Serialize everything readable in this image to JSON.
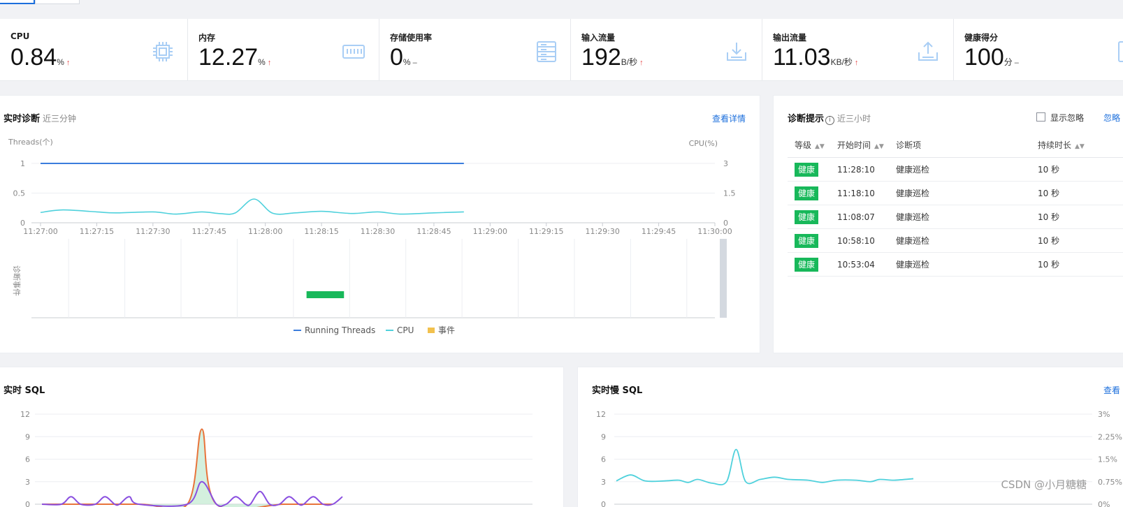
{
  "metrics": [
    {
      "label": "CPU",
      "value": "0.84",
      "unit": "%",
      "trend": "↑",
      "icon": "cpu-chip-icon"
    },
    {
      "label": "内存",
      "value": "12.27",
      "unit": "%",
      "trend": "↑",
      "icon": "memory-icon"
    },
    {
      "label": "存储使用率",
      "value": "0",
      "unit": "%",
      "trend": "–",
      "icon": "storage-icon"
    },
    {
      "label": "输入流量",
      "value": "192",
      "unit": "B/秒",
      "trend": "↑",
      "icon": "download-icon"
    },
    {
      "label": "输出流量",
      "value": "11.03",
      "unit": "KB/秒",
      "trend": "↑",
      "icon": "upload-icon"
    },
    {
      "label": "健康得分",
      "value": "100",
      "unit": "分",
      "trend": "–",
      "icon": "report-icon"
    }
  ],
  "realtime_diag": {
    "title": "实时诊断",
    "subtitle": "近三分钟",
    "detail_link": "查看详情",
    "event_axis_label": "诊断事件",
    "legend": {
      "threads": "Running Threads",
      "cpu": "CPU",
      "event": "事件"
    }
  },
  "diag_tips": {
    "title": "诊断提示",
    "subtitle": "近三小时",
    "show_ignored": "显示忽略",
    "ignore_link": "忽略",
    "columns": [
      "等级",
      "开始时间",
      "诊断项",
      "持续时长"
    ],
    "rows": [
      {
        "level": "健康",
        "time": "11:28:10",
        "item": "健康巡检",
        "duration": "10 秒"
      },
      {
        "level": "健康",
        "time": "11:18:10",
        "item": "健康巡检",
        "duration": "10 秒"
      },
      {
        "level": "健康",
        "time": "11:08:07",
        "item": "健康巡检",
        "duration": "10 秒"
      },
      {
        "level": "健康",
        "time": "10:58:10",
        "item": "健康巡检",
        "duration": "10 秒"
      },
      {
        "level": "健康",
        "time": "10:53:04",
        "item": "健康巡检",
        "duration": "10 秒"
      }
    ]
  },
  "sql_card": {
    "title": "实时 SQL"
  },
  "slow_sql_card": {
    "title": "实时慢 SQL",
    "detail_link": "查看"
  },
  "watermark": "CSDN @小月糖糖",
  "colors": {
    "threads": "#3b7ddd",
    "cpu": "#4fd1dc",
    "event": "#f2c14e",
    "event_bar": "#18b85a",
    "badge": "#18b85a",
    "link": "#1c6fdc",
    "up": "#e54545"
  },
  "chart_data": [
    {
      "type": "line",
      "title": "实时诊断",
      "ylabel": "Threads(个)",
      "y2label": "CPU(%)",
      "x": [
        "11:27:00",
        "11:27:15",
        "11:27:30",
        "11:27:45",
        "11:28:00",
        "11:28:15",
        "11:28:30",
        "11:28:45",
        "11:29:00",
        "11:29:15",
        "11:29:30",
        "11:29:45",
        "11:30:00"
      ],
      "ylim": [
        0,
        1
      ],
      "y2lim": [
        0,
        3
      ],
      "yticks": [
        "0",
        "0.5",
        "1"
      ],
      "y2ticks": [
        "0",
        "1.5",
        "3"
      ],
      "series": [
        {
          "name": "Running Threads",
          "axis": "left",
          "points": [
            [
              "11:27:00",
              1
            ],
            [
              "11:28:53",
              1
            ]
          ]
        },
        {
          "name": "CPU",
          "axis": "right",
          "points": [
            [
              "11:27:00",
              0.52
            ],
            [
              "11:27:06",
              0.65
            ],
            [
              "11:27:15",
              0.55
            ],
            [
              "11:27:20",
              0.5
            ],
            [
              "11:27:30",
              0.55
            ],
            [
              "11:27:36",
              0.44
            ],
            [
              "11:27:43",
              0.55
            ],
            [
              "11:27:48",
              0.46
            ],
            [
              "11:27:52",
              0.5
            ],
            [
              "11:27:57",
              1.2
            ],
            [
              "11:28:02",
              0.48
            ],
            [
              "11:28:08",
              0.5
            ],
            [
              "11:28:15",
              0.58
            ],
            [
              "11:28:23",
              0.47
            ],
            [
              "11:28:30",
              0.55
            ],
            [
              "11:28:36",
              0.44
            ],
            [
              "11:28:45",
              0.5
            ],
            [
              "11:28:53",
              0.55
            ]
          ]
        }
      ],
      "events": [
        {
          "name": "事件",
          "start": "11:28:11",
          "end": "11:28:21"
        }
      ]
    },
    {
      "type": "area",
      "title": "实时 SQL",
      "ylim": [
        0,
        12
      ],
      "yticks": [
        "0",
        "3",
        "6",
        "9",
        "12"
      ],
      "series": [
        {
          "name": "orange",
          "color": "#e8743b",
          "points": [
            [
              0,
              0
            ],
            [
              20,
              0
            ],
            [
              30,
              0
            ],
            [
              33,
              10
            ],
            [
              36,
              0
            ],
            [
              50,
              0
            ],
            [
              60,
              0
            ]
          ]
        },
        {
          "name": "purple",
          "color": "#8a4fe0",
          "points": [
            [
              0,
              0
            ],
            [
              4,
              0
            ],
            [
              6,
              1
            ],
            [
              8,
              0
            ],
            [
              11,
              0
            ],
            [
              13,
              1
            ],
            [
              15,
              0
            ],
            [
              16,
              0
            ],
            [
              18,
              1
            ],
            [
              20,
              0
            ],
            [
              30,
              0
            ],
            [
              33,
              3
            ],
            [
              36,
              0
            ],
            [
              38,
              0
            ],
            [
              40,
              1
            ],
            [
              42,
              0
            ],
            [
              43,
              0
            ],
            [
              45,
              1.7
            ],
            [
              47,
              0
            ],
            [
              49,
              0
            ],
            [
              51,
              1
            ],
            [
              53,
              0
            ],
            [
              54,
              0
            ],
            [
              56,
              1
            ],
            [
              58,
              0
            ],
            [
              60,
              0
            ],
            [
              62,
              1
            ]
          ]
        }
      ]
    },
    {
      "type": "line",
      "title": "实时慢 SQL",
      "ylim": [
        0,
        12
      ],
      "yticks": [
        "0",
        "3",
        "6",
        "9",
        "12"
      ],
      "y2ticks": [
        "0%",
        "0.75%",
        "1.5%",
        "2.25%",
        "3%"
      ],
      "series": [
        {
          "name": "slow",
          "color": "#4fd1dc",
          "points": [
            [
              0,
              3.1
            ],
            [
              3,
              3.9
            ],
            [
              6,
              3.1
            ],
            [
              10,
              3.1
            ],
            [
              13,
              3.2
            ],
            [
              15,
              2.9
            ],
            [
              17,
              3.3
            ],
            [
              20,
              2.8
            ],
            [
              23,
              3.0
            ],
            [
              25,
              7.3
            ],
            [
              27,
              3.0
            ],
            [
              30,
              3.3
            ],
            [
              33,
              3.6
            ],
            [
              36,
              3.3
            ],
            [
              40,
              3.2
            ],
            [
              43,
              2.9
            ],
            [
              46,
              3.2
            ],
            [
              50,
              3.2
            ],
            [
              53,
              3.0
            ],
            [
              55,
              3.3
            ],
            [
              58,
              3.2
            ],
            [
              62,
              3.4
            ]
          ]
        }
      ]
    }
  ]
}
